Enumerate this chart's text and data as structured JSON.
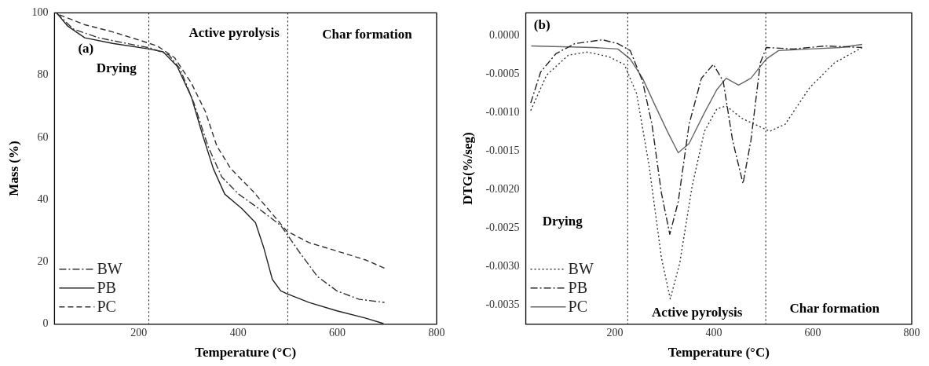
{
  "chart_data": [
    {
      "type": "line",
      "xlabel": "Temperature (°C)",
      "ylabel": "Mass (%)",
      "xlim": [
        30,
        800
      ],
      "xticks": [
        200,
        400,
        600,
        800
      ],
      "ylim": [
        0,
        100
      ],
      "yticks": [
        0,
        20,
        40,
        60,
        80,
        100
      ],
      "grid": false,
      "legend": "bottom left",
      "marker": "none",
      "ref_lines": [
        {
          "axis": "x",
          "value": 220,
          "line_style": "dotted",
          "color": "#000000"
        },
        {
          "axis": "x",
          "value": 500,
          "line_style": "dotted",
          "color": "#000000"
        }
      ],
      "annotations": [
        "(a)",
        "Drying",
        "Active pyrolysis",
        "Char formation"
      ],
      "series": [
        {
          "name": "BW",
          "color": "#333333",
          "line_style": "dashdot",
          "x": [
            34,
            68,
            119,
            175,
            221,
            260,
            283,
            311,
            339,
            367,
            401,
            441,
            486,
            498,
            526,
            560,
            599,
            644,
            695
          ],
          "values": [
            100,
            94.8,
            92,
            90.2,
            88.8,
            86.6,
            82,
            71,
            57.3,
            47.3,
            41.8,
            37.2,
            31.7,
            29,
            22.6,
            15.3,
            10.7,
            8,
            7
          ]
        },
        {
          "name": "PB",
          "color": "#222222",
          "line_style": "solid",
          "x": [
            34,
            57,
            91,
            147,
            221,
            249,
            277,
            306,
            328,
            350,
            373,
            407,
            435,
            452,
            469,
            486,
            498,
            543,
            599,
            656,
            693
          ],
          "values": [
            100,
            95.7,
            92,
            90.2,
            88.4,
            87.5,
            82.9,
            72.9,
            61,
            50,
            41.8,
            37.2,
            32.6,
            24.4,
            14.4,
            10.7,
            9.8,
            7,
            4.3,
            2,
            0.2
          ]
        },
        {
          "name": "PC",
          "color": "#333333",
          "line_style": "dashed",
          "x": [
            40,
            91,
            147,
            204,
            238,
            272,
            306,
            334,
            357,
            385,
            430,
            469,
            498,
            543,
            599,
            656,
            695
          ],
          "values": [
            99.4,
            96.2,
            93.9,
            91.1,
            89.3,
            85.6,
            77.4,
            68.3,
            57.3,
            50,
            42.7,
            35.4,
            29.9,
            26.2,
            23.5,
            20.7,
            18
          ]
        }
      ]
    },
    {
      "type": "line",
      "xlabel": "Temperature (°C)",
      "ylabel": "DTG(%/seg)",
      "xlim": [
        20,
        800
      ],
      "xticks": [
        200,
        400,
        600,
        800
      ],
      "ylim": [
        -0.00375,
        0.0003
      ],
      "yticks": [
        {
          "value": 0,
          "label": "0.0000"
        },
        {
          "value": -0.0005,
          "label": "-0.0005"
        },
        {
          "value": -0.001,
          "label": "-0.0010"
        },
        {
          "value": -0.0015,
          "label": "-0.0015"
        },
        {
          "value": -0.002,
          "label": "-0.0020"
        },
        {
          "value": -0.0025,
          "label": "-0.0025"
        },
        {
          "value": -0.003,
          "label": "-0.0030"
        },
        {
          "value": -0.0035,
          "label": "-0.0035"
        }
      ],
      "grid": false,
      "legend": "bottom left",
      "marker": "none",
      "ref_lines": [
        {
          "axis": "x",
          "value": 226,
          "line_style": "dotted",
          "color": "#000000"
        },
        {
          "axis": "x",
          "value": 505,
          "line_style": "dotted",
          "color": "#000000"
        }
      ],
      "annotations": [
        "(b)",
        "Drying",
        "Active pyrolysis",
        "Char formation"
      ],
      "series": [
        {
          "name": "BW",
          "color": "#333333",
          "line_style": "dotted",
          "x": [
            30,
            62,
            106,
            144,
            188,
            219,
            244,
            269,
            294,
            312,
            331,
            356,
            381,
            406,
            425,
            456,
            513,
            544,
            594,
            644,
            700
          ],
          "values": [
            -0.00097,
            -0.00051,
            -0.00025,
            -0.00021,
            -0.00027,
            -0.00037,
            -0.00075,
            -0.00168,
            -0.00288,
            -0.00342,
            -0.00296,
            -0.00196,
            -0.00124,
            -0.00095,
            -0.00091,
            -0.00107,
            -0.00124,
            -0.00115,
            -0.00067,
            -0.00035,
            -0.00015
          ]
        },
        {
          "name": "PB",
          "color": "#222222",
          "line_style": "dashdot",
          "x": [
            30,
            50,
            81,
            119,
            175,
            206,
            231,
            256,
            275,
            294,
            311,
            328,
            350,
            375,
            399,
            419,
            438,
            459,
            475,
            494,
            506,
            562,
            625,
            700
          ],
          "values": [
            -0.00087,
            -0.00047,
            -0.00023,
            -0.0001,
            -5e-05,
            -0.0001,
            -0.00019,
            -0.00059,
            -0.00115,
            -0.00204,
            -0.00258,
            -0.00216,
            -0.00115,
            -0.00055,
            -0.00037,
            -0.00059,
            -0.00136,
            -0.00192,
            -0.00136,
            -0.00035,
            -0.00015,
            -0.00017,
            -0.00013,
            -0.00015
          ]
        },
        {
          "name": "PC",
          "color": "#666666",
          "line_style": "solid",
          "x": [
            31,
            94,
            156,
            206,
            231,
            256,
            281,
            306,
            328,
            350,
            381,
            406,
            425,
            450,
            475,
            506,
            531,
            594,
            656,
            700
          ],
          "values": [
            -0.00013,
            -0.00014,
            -0.00015,
            -0.00017,
            -0.0003,
            -0.00055,
            -0.0009,
            -0.00124,
            -0.00152,
            -0.0014,
            -0.001,
            -0.0007,
            -0.00055,
            -0.00064,
            -0.00055,
            -0.0003,
            -0.00019,
            -0.00017,
            -0.00015,
            -0.00011
          ]
        }
      ]
    }
  ]
}
